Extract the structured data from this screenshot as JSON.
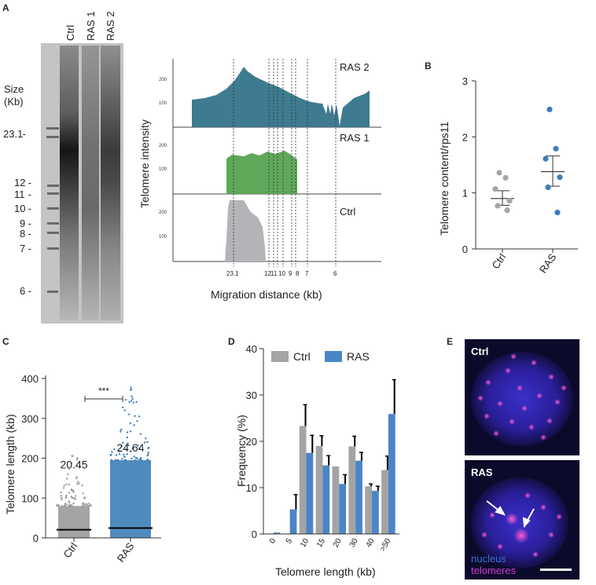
{
  "figure": {
    "panel_labels": [
      "A",
      "B",
      "C",
      "D",
      "E"
    ]
  },
  "panel_a": {
    "lane_labels": [
      "Ctrl",
      "RAS 1",
      "RAS 2"
    ],
    "size_title": [
      "Size",
      "(Kb)"
    ],
    "marker_sizes": [
      "23.1",
      "12",
      "11",
      "10",
      "9",
      "8",
      "7",
      "6"
    ],
    "profile": {
      "ylabel": "Telomere intensity",
      "xlabel": "Migration distance (kb)",
      "tracks": [
        {
          "name": "RAS 2",
          "color": "#3e7b91"
        },
        {
          "name": "RAS 1",
          "color": "#5fa85a"
        },
        {
          "name": "Ctrl",
          "color": "#b3b3b8"
        }
      ],
      "yticks": [
        "200",
        "100"
      ],
      "xticks": [
        "23.1",
        "12",
        "11",
        "10",
        "9",
        "8",
        "7",
        "6"
      ]
    }
  },
  "chart_data": [
    {
      "panel": "B",
      "type": "scatter",
      "ylabel": "Telomere content/rps11",
      "categories": [
        "Ctrl",
        "RAS"
      ],
      "ylim": [
        0,
        3
      ],
      "yticks": [
        "0",
        "1",
        "2",
        "3"
      ],
      "series": [
        {
          "name": "Ctrl",
          "color": "#a6a6a6",
          "values": [
            1.36,
            1.27,
            1.07,
            0.86,
            0.77,
            0.69
          ],
          "mean": 0.9,
          "sem_range": [
            0.78,
            1.04
          ]
        },
        {
          "name": "RAS",
          "color": "#3d7eb9",
          "values": [
            2.49,
            1.79,
            1.61,
            1.28,
            1.1,
            0.65
          ],
          "mean": 1.38,
          "sem_range": [
            1.12,
            1.66
          ]
        }
      ]
    },
    {
      "panel": "C",
      "type": "scatter",
      "ylabel": "Telomere length (kb)",
      "categories": [
        "Ctrl",
        "RAS"
      ],
      "ylim": [
        0,
        400
      ],
      "yticks": [
        "0",
        "100",
        "200",
        "300",
        "400"
      ],
      "series": [
        {
          "name": "Ctrl",
          "color": "#9a9a9a",
          "median": 20.45,
          "dense_max": 80,
          "outlier_max": 220,
          "median_label": "20.45"
        },
        {
          "name": "RAS",
          "color": "#3d7eb9",
          "median": 24.64,
          "dense_max": 195,
          "outlier_max": 390,
          "median_label": "24.64"
        }
      ],
      "annotations": [
        "***"
      ]
    },
    {
      "panel": "D",
      "type": "bar",
      "ylabel": "Frequency (%)",
      "xlabel": "Telomere length (kb)",
      "categories": [
        "0",
        "5",
        "10",
        "15",
        "20",
        "30",
        "40",
        ">50"
      ],
      "ylim": [
        0,
        40
      ],
      "yticks": [
        "0",
        "10",
        "20",
        "30",
        "40"
      ],
      "legend_position": "top",
      "series": [
        {
          "name": "Ctrl",
          "color": "#a4a4a4",
          "values": [
            0.1,
            0.1,
            23.3,
            19.0,
            14.6,
            18.9,
            10.3,
            13.8
          ],
          "errors": [
            0,
            0,
            4.6,
            2.2,
            0,
            2.2,
            0.5,
            3.0
          ]
        },
        {
          "name": "RAS",
          "color": "#4a86c6",
          "values": [
            0.3,
            5.3,
            17.5,
            14.8,
            10.8,
            15.8,
            9.3,
            25.9
          ],
          "errors": [
            0,
            3.2,
            3.8,
            2.1,
            2.0,
            1.8,
            1.0,
            7.4
          ]
        }
      ]
    }
  ],
  "panel_e": {
    "top_label": "Ctrl",
    "bottom_label": "RAS",
    "legend": [
      {
        "text": "nucleus",
        "color": "#3d6fd8"
      },
      {
        "text": "telomeres",
        "color": "#d23ad6"
      }
    ]
  }
}
